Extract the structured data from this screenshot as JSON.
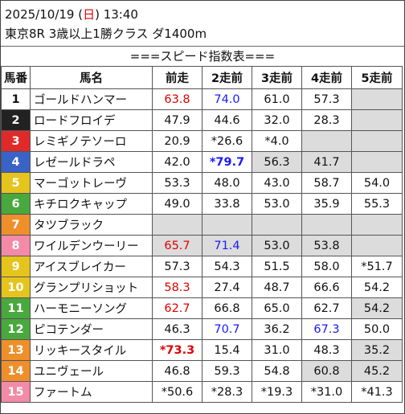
{
  "header": {
    "date": "2025/10/19 (",
    "weekday": "日",
    "time": ") 13:40",
    "race": "東京8R 3歳以上1勝クラス ダ1400m"
  },
  "title": "===スピード指数表===",
  "columns": [
    "馬番",
    "馬名",
    "前走",
    "2走前",
    "3走前",
    "4走前",
    "5走前"
  ],
  "colors": {
    "frame1": "#ffffff",
    "frame2": "#222222",
    "frame3": "#e02a2a",
    "frame4": "#3a63c8",
    "frame5": "#e6c41e",
    "frame6": "#49a83e",
    "frame7": "#ef8f2c",
    "frame8": "#f28aa8",
    "red_text": "#e00000",
    "blue_text": "#1a1aff",
    "gray_cell": "#dcdcdc"
  },
  "rows": [
    {
      "num": "1",
      "name": "ゴールドハンマー",
      "v": [
        "63.8",
        "74.0",
        "61.0",
        "57.3",
        ""
      ],
      "style": [
        "r",
        "b",
        "",
        "",
        "g"
      ]
    },
    {
      "num": "2",
      "name": "ロードフロイデ",
      "v": [
        "47.9",
        "44.6",
        "32.0",
        "28.3",
        ""
      ],
      "style": [
        "",
        "",
        "",
        "",
        "g"
      ]
    },
    {
      "num": "3",
      "name": "レミギノテソーロ",
      "v": [
        "20.9",
        "*26.6",
        "*4.0",
        "",
        ""
      ],
      "style": [
        "",
        "",
        "",
        "g",
        "g"
      ]
    },
    {
      "num": "4",
      "name": "レゼールドラペ",
      "v": [
        "42.0",
        "*79.7",
        "56.3",
        "41.7",
        ""
      ],
      "style": [
        "",
        "bB",
        "g",
        "g",
        "g"
      ]
    },
    {
      "num": "5",
      "name": "マーゴットレーヴ",
      "v": [
        "53.3",
        "48.0",
        "43.0",
        "58.7",
        "54.0"
      ],
      "style": [
        "",
        "",
        "",
        "",
        ""
      ]
    },
    {
      "num": "6",
      "name": "キチロクキャップ",
      "v": [
        "49.0",
        "33.8",
        "53.0",
        "35.9",
        "55.3"
      ],
      "style": [
        "",
        "",
        "",
        "",
        ""
      ]
    },
    {
      "num": "7",
      "name": "タツブラック",
      "v": [
        "",
        "",
        "",
        "",
        ""
      ],
      "style": [
        "g",
        "g",
        "g",
        "g",
        "g"
      ]
    },
    {
      "num": "8",
      "name": "ワイルデンウーリー",
      "v": [
        "65.7",
        "71.4",
        "53.0",
        "53.8",
        ""
      ],
      "style": [
        "rg",
        "bg",
        "g",
        "g",
        "g"
      ]
    },
    {
      "num": "9",
      "name": "アイスブレイカー",
      "v": [
        "57.3",
        "54.3",
        "51.5",
        "58.0",
        "*51.7"
      ],
      "style": [
        "",
        "",
        "",
        "",
        ""
      ]
    },
    {
      "num": "10",
      "name": "グランプリショット",
      "v": [
        "58.3",
        "27.4",
        "48.7",
        "66.6",
        "54.2"
      ],
      "style": [
        "r",
        "",
        "",
        "",
        ""
      ]
    },
    {
      "num": "11",
      "name": "ハーモニーソング",
      "v": [
        "62.7",
        "66.8",
        "65.0",
        "62.7",
        "54.2"
      ],
      "style": [
        "r",
        "",
        "",
        "",
        "g"
      ]
    },
    {
      "num": "12",
      "name": "ピコテンダー",
      "v": [
        "46.3",
        "70.7",
        "36.2",
        "67.3",
        "50.0"
      ],
      "style": [
        "",
        "b",
        "",
        "b",
        ""
      ]
    },
    {
      "num": "13",
      "name": "リッキースタイル",
      "v": [
        "*73.3",
        "15.4",
        "31.0",
        "48.3",
        "35.2"
      ],
      "style": [
        "rB",
        "",
        "",
        "",
        "g"
      ]
    },
    {
      "num": "14",
      "name": "ユニヴェール",
      "v": [
        "46.8",
        "59.3",
        "54.8",
        "60.8",
        "45.2"
      ],
      "style": [
        "",
        "",
        "",
        "g",
        "g"
      ]
    },
    {
      "num": "15",
      "name": "ファートム",
      "v": [
        "*50.6",
        "*28.3",
        "*19.3",
        "*31.0",
        "*41.3"
      ],
      "style": [
        "",
        "",
        "",
        "",
        ""
      ]
    }
  ]
}
